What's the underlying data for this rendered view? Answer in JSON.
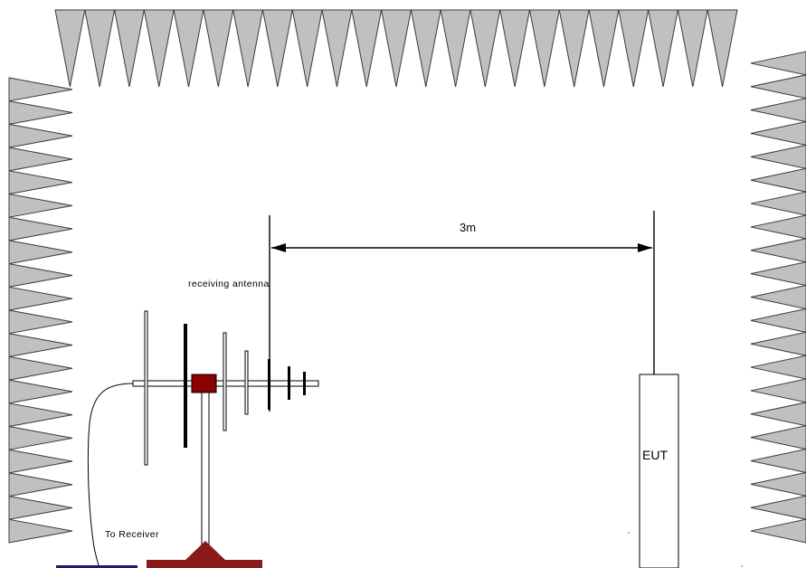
{
  "diagram": {
    "distance_label": "3m",
    "antenna_label": "receiving antenna",
    "receiver_label": "To Receiver",
    "eut_label": "EUT"
  },
  "colors": {
    "absorber_fill": "#c0c0c0",
    "absorber_stroke": "#3a3a3a",
    "antenna_hub": "#8b0000",
    "base": "#8b1a1a",
    "receiver_box": "#1a1a6e",
    "line": "#000000",
    "background": "#ffffff"
  },
  "icons": {
    "absorbers": "pyramidal-absorber-icon",
    "antenna": "log-periodic-antenna-icon",
    "eut": "equipment-under-test-box"
  }
}
